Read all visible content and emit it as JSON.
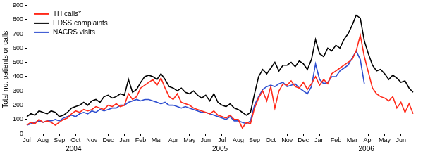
{
  "chart_data": {
    "type": "line",
    "y_label": "Total no. patients or calls",
    "categories": [
      "Jul",
      null,
      null,
      null,
      "Aug",
      null,
      null,
      null,
      "Sep",
      null,
      null,
      null,
      "Oct",
      null,
      null,
      null,
      "Nov",
      null,
      null,
      null,
      "Dec",
      null,
      null,
      null,
      "Jan",
      null,
      null,
      null,
      "Feb",
      null,
      null,
      null,
      "Mar",
      null,
      null,
      null,
      "Apr",
      null,
      null,
      null,
      "May",
      null,
      null,
      null,
      "Jun",
      null,
      null,
      null,
      "Jul",
      null,
      null,
      null,
      "Aug",
      null,
      null,
      null,
      "Sep",
      null,
      null,
      null,
      "Oct",
      null,
      null,
      null,
      "Nov",
      null,
      null,
      null,
      "Dec",
      null,
      null,
      null,
      "Jan",
      null,
      null,
      null,
      "Feb",
      null,
      null,
      null,
      "Mar",
      null,
      null,
      null,
      "Apr",
      null,
      null,
      null,
      "May",
      null,
      null,
      null,
      "Jun",
      null,
      null,
      null
    ],
    "annotations": [
      {
        "text": "2004",
        "from": 0,
        "to": 23
      },
      {
        "text": "2005",
        "from": 24,
        "to": 71
      },
      {
        "text": "2006",
        "from": 72,
        "to": 95
      }
    ],
    "series": [
      {
        "name": "TH calls*",
        "color": "#ff2a1a",
        "values": [
          60,
          80,
          70,
          100,
          80,
          90,
          80,
          60,
          80,
          100,
          110,
          140,
          160,
          150,
          170,
          160,
          170,
          190,
          180,
          170,
          200,
          190,
          210,
          190,
          200,
          280,
          240,
          260,
          320,
          340,
          360,
          380,
          340,
          390,
          320,
          260,
          240,
          280,
          220,
          210,
          200,
          180,
          170,
          160,
          150,
          140,
          160,
          130,
          120,
          110,
          130,
          100,
          100,
          40,
          80,
          70,
          180,
          250,
          300,
          230,
          330,
          180,
          300,
          350,
          340,
          370,
          330,
          320,
          360,
          310,
          350,
          400,
          340,
          380,
          350,
          420,
          440,
          460,
          480,
          500,
          520,
          580,
          690,
          540,
          430,
          320,
          280,
          260,
          250,
          230,
          260,
          180,
          220,
          150,
          210,
          140
        ]
      },
      {
        "name": "EDSS complaints",
        "color": "#000000",
        "values": [
          120,
          140,
          130,
          160,
          150,
          140,
          160,
          150,
          120,
          130,
          150,
          180,
          190,
          200,
          220,
          200,
          230,
          240,
          220,
          260,
          270,
          250,
          260,
          280,
          270,
          380,
          290,
          310,
          360,
          400,
          410,
          400,
          380,
          420,
          380,
          330,
          320,
          300,
          320,
          290,
          280,
          300,
          270,
          250,
          270,
          230,
          280,
          220,
          200,
          190,
          210,
          180,
          170,
          150,
          130,
          150,
          280,
          400,
          450,
          420,
          460,
          500,
          440,
          480,
          480,
          500,
          470,
          510,
          490,
          450,
          520,
          660,
          560,
          540,
          600,
          580,
          620,
          600,
          660,
          700,
          760,
          830,
          810,
          650,
          560,
          480,
          440,
          450,
          420,
          380,
          410,
          390,
          360,
          370,
          320,
          290
        ]
      },
      {
        "name": "NACRS visits",
        "color": "#2f4fd0",
        "values": [
          60,
          70,
          80,
          90,
          80,
          90,
          90,
          100,
          90,
          110,
          120,
          130,
          120,
          140,
          150,
          140,
          160,
          150,
          170,
          160,
          170,
          180,
          180,
          200,
          200,
          220,
          230,
          240,
          230,
          240,
          240,
          230,
          220,
          210,
          220,
          200,
          200,
          190,
          180,
          190,
          180,
          170,
          160,
          150,
          150,
          140,
          130,
          120,
          110,
          100,
          120,
          90,
          90,
          80,
          70,
          90,
          200,
          260,
          310,
          330,
          340,
          330,
          350,
          360,
          330,
          340,
          350,
          320,
          300,
          280,
          330,
          490,
          380,
          350,
          360,
          400,
          400,
          440,
          460,
          480,
          530,
          580,
          520,
          350,
          null,
          null,
          null,
          null,
          null,
          null,
          null,
          null,
          null,
          null,
          null,
          null
        ]
      }
    ],
    "ylim": [
      0,
      900
    ],
    "yticks": [
      0,
      100,
      200,
      300,
      400,
      500,
      600,
      700,
      800,
      900
    ],
    "grid": false,
    "legend": "upper left"
  }
}
